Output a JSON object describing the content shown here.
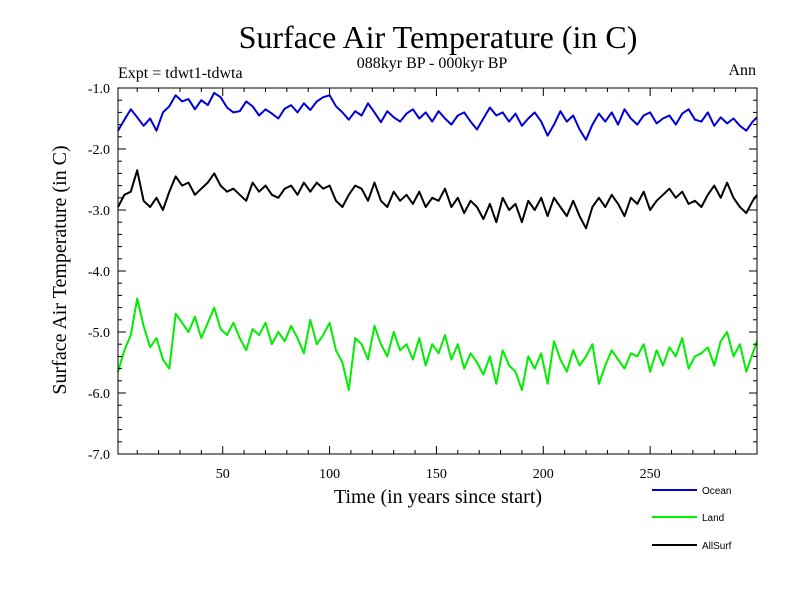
{
  "chart_data": {
    "type": "line",
    "title": "Surface Air Temperature (in C)",
    "subtitle": "088kyr BP - 000kyr BP",
    "experiment_label": "Expt = tdwt1-tdwta",
    "season_label": "Ann",
    "xlabel": "Time (in years since start)",
    "ylabel": "Surface Air Temperature (in C)",
    "xlim": [
      1,
      300
    ],
    "ylim": [
      -7.0,
      -1.0
    ],
    "xticks": [
      50,
      100,
      150,
      200,
      250
    ],
    "xtick_labels": [
      "50",
      "100",
      "150",
      "200",
      "250"
    ],
    "yticks": [
      -1.0,
      -2.0,
      -3.0,
      -4.0,
      -5.0,
      -6.0,
      -7.0
    ],
    "ytick_labels": [
      "-1.0",
      "-2.0",
      "-3.0",
      "-4.0",
      "-5.0",
      "-6.0",
      "-7.0"
    ],
    "legend_position": "bottom-right",
    "series": [
      {
        "name": "Ocean",
        "color": "#0000dd",
        "x": [
          1,
          4,
          7,
          10,
          13,
          16,
          19,
          22,
          25,
          28,
          31,
          34,
          37,
          40,
          43,
          46,
          49,
          52,
          55,
          58,
          61,
          64,
          67,
          70,
          73,
          76,
          79,
          82,
          85,
          88,
          91,
          94,
          97,
          100,
          103,
          106,
          109,
          112,
          115,
          118,
          121,
          124,
          127,
          130,
          133,
          136,
          139,
          142,
          145,
          148,
          151,
          154,
          157,
          160,
          163,
          166,
          169,
          172,
          175,
          178,
          181,
          184,
          187,
          190,
          193,
          196,
          199,
          202,
          205,
          208,
          211,
          214,
          217,
          220,
          223,
          226,
          229,
          232,
          235,
          238,
          241,
          244,
          247,
          250,
          253,
          256,
          259,
          262,
          265,
          268,
          271,
          274,
          277,
          280,
          283,
          286,
          289,
          292,
          295,
          298,
          300
        ],
        "values": [
          -1.7,
          -1.52,
          -1.35,
          -1.48,
          -1.62,
          -1.5,
          -1.7,
          -1.4,
          -1.3,
          -1.12,
          -1.22,
          -1.18,
          -1.35,
          -1.2,
          -1.28,
          -1.08,
          -1.15,
          -1.32,
          -1.4,
          -1.38,
          -1.22,
          -1.3,
          -1.45,
          -1.35,
          -1.42,
          -1.5,
          -1.34,
          -1.28,
          -1.4,
          -1.25,
          -1.36,
          -1.22,
          -1.15,
          -1.12,
          -1.3,
          -1.4,
          -1.52,
          -1.38,
          -1.45,
          -1.25,
          -1.4,
          -1.56,
          -1.38,
          -1.48,
          -1.55,
          -1.42,
          -1.35,
          -1.5,
          -1.4,
          -1.55,
          -1.38,
          -1.5,
          -1.6,
          -1.45,
          -1.4,
          -1.55,
          -1.68,
          -1.5,
          -1.32,
          -1.45,
          -1.4,
          -1.55,
          -1.42,
          -1.62,
          -1.5,
          -1.4,
          -1.55,
          -1.78,
          -1.6,
          -1.38,
          -1.55,
          -1.45,
          -1.68,
          -1.85,
          -1.6,
          -1.42,
          -1.55,
          -1.4,
          -1.6,
          -1.35,
          -1.5,
          -1.6,
          -1.45,
          -1.4,
          -1.58,
          -1.5,
          -1.45,
          -1.6,
          -1.42,
          -1.35,
          -1.52,
          -1.55,
          -1.4,
          -1.62,
          -1.48,
          -1.58,
          -1.5,
          -1.62,
          -1.7,
          -1.55,
          -1.48
        ]
      },
      {
        "name": "Land",
        "color": "#00ee00",
        "x": [
          1,
          4,
          7,
          10,
          13,
          16,
          19,
          22,
          25,
          28,
          31,
          34,
          37,
          40,
          43,
          46,
          49,
          52,
          55,
          58,
          61,
          64,
          67,
          70,
          73,
          76,
          79,
          82,
          85,
          88,
          91,
          94,
          97,
          100,
          103,
          106,
          109,
          112,
          115,
          118,
          121,
          124,
          127,
          130,
          133,
          136,
          139,
          142,
          145,
          148,
          151,
          154,
          157,
          160,
          163,
          166,
          169,
          172,
          175,
          178,
          181,
          184,
          187,
          190,
          193,
          196,
          199,
          202,
          205,
          208,
          211,
          214,
          217,
          220,
          223,
          226,
          229,
          232,
          235,
          238,
          241,
          244,
          247,
          250,
          253,
          256,
          259,
          262,
          265,
          268,
          271,
          274,
          277,
          280,
          283,
          286,
          289,
          292,
          295,
          298,
          300
        ],
        "values": [
          -5.65,
          -5.3,
          -5.05,
          -4.45,
          -4.9,
          -5.25,
          -5.1,
          -5.45,
          -5.6,
          -4.7,
          -4.85,
          -5.0,
          -4.75,
          -5.1,
          -4.85,
          -4.6,
          -4.95,
          -5.05,
          -4.85,
          -5.1,
          -5.3,
          -4.95,
          -5.05,
          -4.85,
          -5.2,
          -5.0,
          -5.15,
          -4.9,
          -5.1,
          -5.35,
          -4.8,
          -5.2,
          -5.05,
          -4.85,
          -5.3,
          -5.5,
          -5.95,
          -5.1,
          -5.2,
          -5.45,
          -4.9,
          -5.2,
          -5.4,
          -5.0,
          -5.3,
          -5.2,
          -5.45,
          -5.1,
          -5.55,
          -5.2,
          -5.35,
          -5.05,
          -5.45,
          -5.2,
          -5.6,
          -5.35,
          -5.5,
          -5.7,
          -5.4,
          -5.85,
          -5.3,
          -5.55,
          -5.65,
          -5.95,
          -5.4,
          -5.6,
          -5.35,
          -5.85,
          -5.15,
          -5.45,
          -5.65,
          -5.3,
          -5.55,
          -5.4,
          -5.2,
          -5.85,
          -5.55,
          -5.3,
          -5.45,
          -5.6,
          -5.35,
          -5.4,
          -5.2,
          -5.65,
          -5.3,
          -5.55,
          -5.25,
          -5.4,
          -5.1,
          -5.6,
          -5.4,
          -5.35,
          -5.25,
          -5.55,
          -5.15,
          -5.0,
          -5.4,
          -5.2,
          -5.65,
          -5.35,
          -5.15
        ]
      },
      {
        "name": "AllSurf",
        "color": "#000000",
        "x": [
          1,
          4,
          7,
          10,
          13,
          16,
          19,
          22,
          25,
          28,
          31,
          34,
          37,
          40,
          43,
          46,
          49,
          52,
          55,
          58,
          61,
          64,
          67,
          70,
          73,
          76,
          79,
          82,
          85,
          88,
          91,
          94,
          97,
          100,
          103,
          106,
          109,
          112,
          115,
          118,
          121,
          124,
          127,
          130,
          133,
          136,
          139,
          142,
          145,
          148,
          151,
          154,
          157,
          160,
          163,
          166,
          169,
          172,
          175,
          178,
          181,
          184,
          187,
          190,
          193,
          196,
          199,
          202,
          205,
          208,
          211,
          214,
          217,
          220,
          223,
          226,
          229,
          232,
          235,
          238,
          241,
          244,
          247,
          250,
          253,
          256,
          259,
          262,
          265,
          268,
          271,
          274,
          277,
          280,
          283,
          286,
          289,
          292,
          295,
          298,
          300
        ],
        "values": [
          -2.95,
          -2.75,
          -2.7,
          -2.35,
          -2.85,
          -2.95,
          -2.8,
          -3.0,
          -2.7,
          -2.45,
          -2.6,
          -2.55,
          -2.75,
          -2.65,
          -2.55,
          -2.4,
          -2.6,
          -2.7,
          -2.65,
          -2.75,
          -2.85,
          -2.55,
          -2.7,
          -2.6,
          -2.75,
          -2.8,
          -2.65,
          -2.6,
          -2.75,
          -2.55,
          -2.7,
          -2.55,
          -2.65,
          -2.6,
          -2.85,
          -2.95,
          -2.75,
          -2.6,
          -2.65,
          -2.85,
          -2.55,
          -2.85,
          -2.95,
          -2.7,
          -2.85,
          -2.75,
          -2.9,
          -2.7,
          -2.95,
          -2.8,
          -2.85,
          -2.65,
          -2.95,
          -2.8,
          -3.05,
          -2.85,
          -2.95,
          -3.15,
          -2.9,
          -3.2,
          -2.8,
          -3.0,
          -2.9,
          -3.2,
          -2.85,
          -3.0,
          -2.8,
          -3.1,
          -2.8,
          -2.95,
          -3.1,
          -2.85,
          -3.1,
          -3.3,
          -2.95,
          -2.8,
          -2.95,
          -2.75,
          -2.9,
          -3.1,
          -2.8,
          -2.9,
          -2.7,
          -3.0,
          -2.85,
          -2.75,
          -2.65,
          -2.8,
          -2.7,
          -2.9,
          -2.85,
          -2.95,
          -2.75,
          -2.6,
          -2.8,
          -2.55,
          -2.8,
          -2.95,
          -3.05,
          -2.85,
          -2.75
        ]
      }
    ]
  }
}
